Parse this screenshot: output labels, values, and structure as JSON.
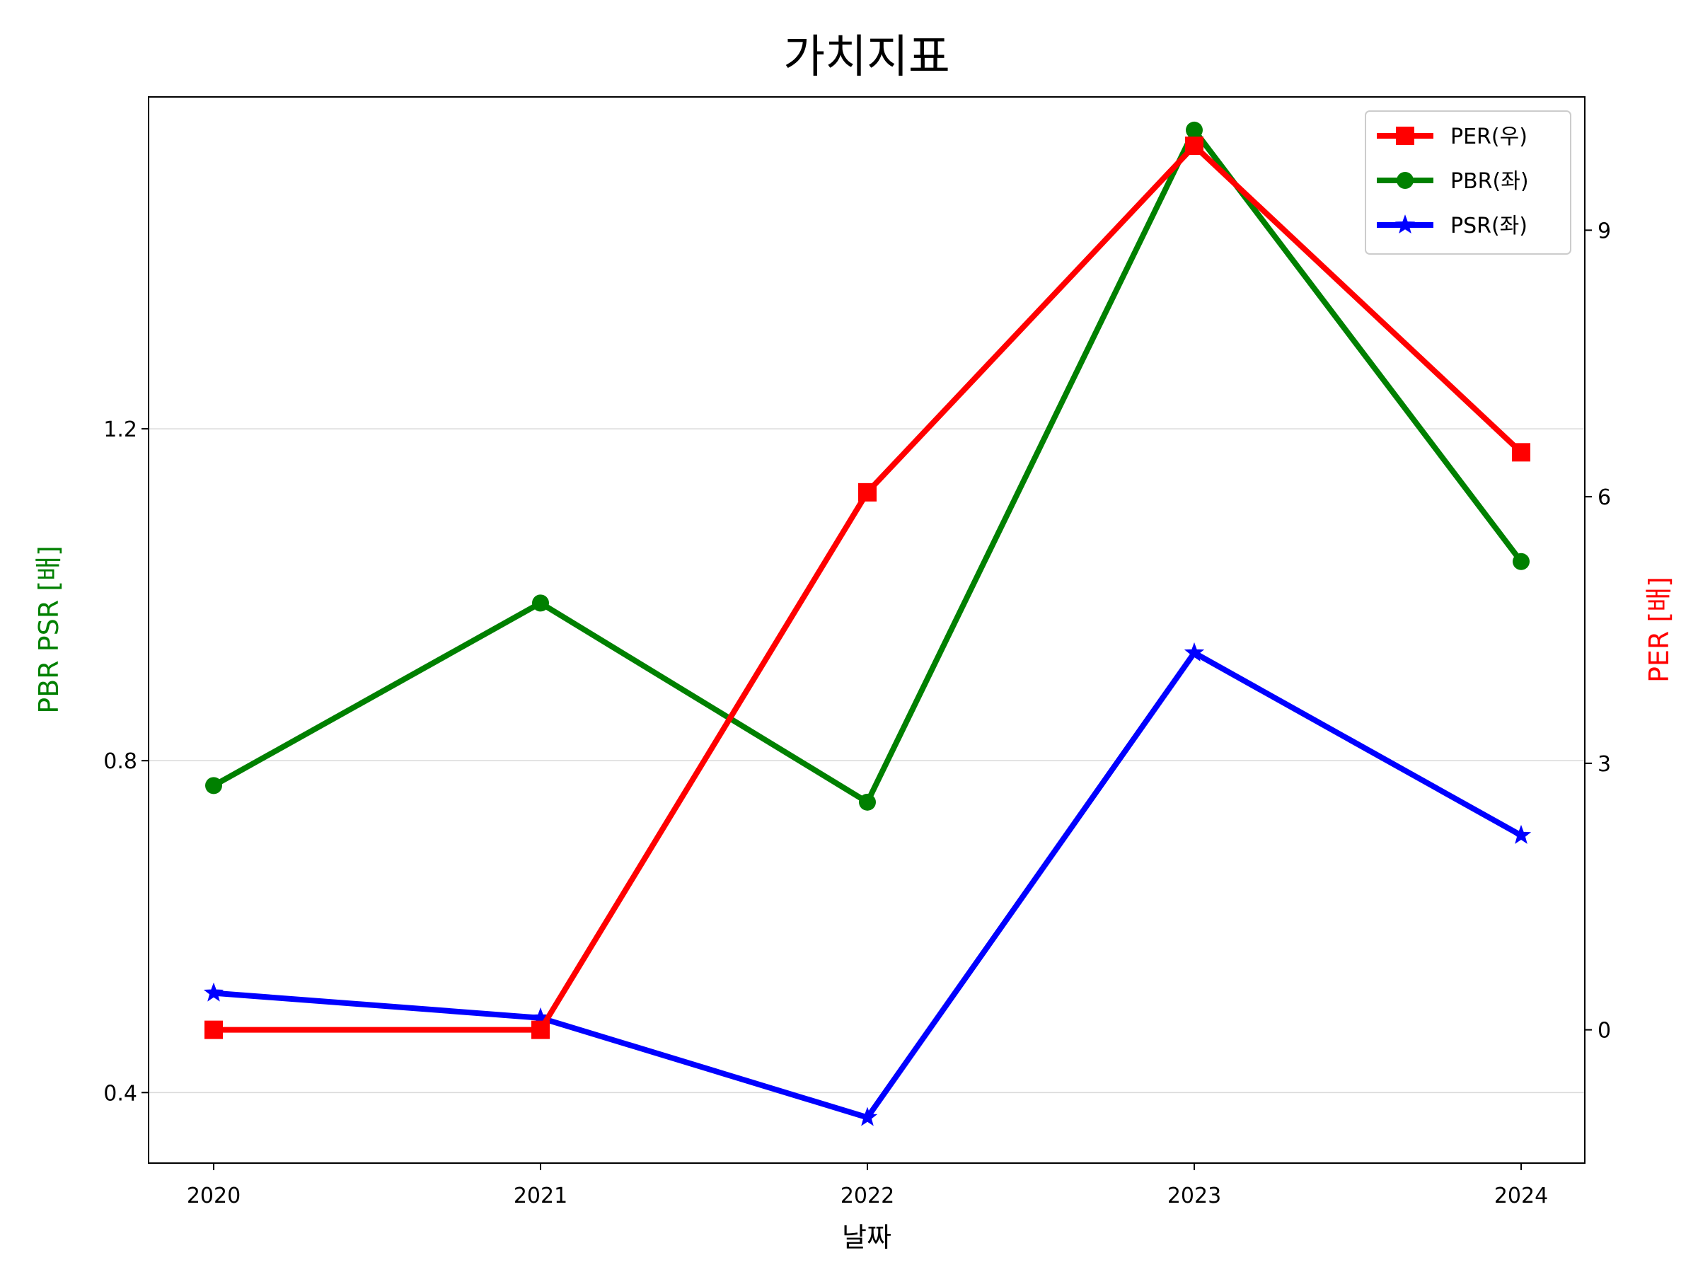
{
  "chart_data": {
    "type": "line",
    "title": "가치지표",
    "xlabel": "날짜",
    "ylabel_left": "PBR PSR [배]",
    "ylabel_right": "PER [배]",
    "ylabel_left_color": "#008000",
    "ylabel_right_color": "#ff0000",
    "categories": [
      "2020",
      "2021",
      "2022",
      "2023",
      "2024"
    ],
    "y_left": {
      "lim": [
        0.315,
        1.6
      ],
      "ticks": [
        0.4,
        0.8,
        1.2
      ],
      "tick_labels": [
        "0.4",
        "0.8",
        "1.2"
      ]
    },
    "y_right": {
      "lim": [
        -1.5,
        10.5
      ],
      "ticks": [
        0,
        3,
        6,
        9
      ],
      "tick_labels": [
        "0",
        "3",
        "6",
        "9"
      ]
    },
    "grid": "horizontal-left",
    "legend_position": "top-right",
    "series": [
      {
        "name": "PER(우)",
        "axis": "right",
        "color": "#ff0000",
        "marker": "square",
        "values": [
          0.0,
          0.0,
          6.05,
          9.95,
          6.5
        ]
      },
      {
        "name": "PBR(좌)",
        "axis": "left",
        "color": "#008000",
        "marker": "circle",
        "values": [
          0.77,
          0.99,
          0.75,
          1.56,
          1.04
        ]
      },
      {
        "name": "PSR(좌)",
        "axis": "left",
        "color": "#0000ff",
        "marker": "star",
        "values": [
          0.52,
          0.49,
          0.37,
          0.93,
          0.71
        ]
      }
    ]
  }
}
